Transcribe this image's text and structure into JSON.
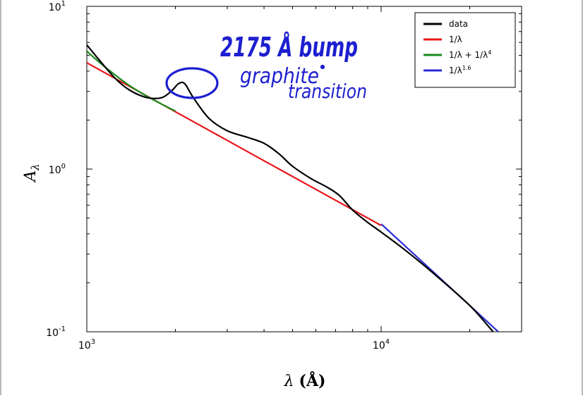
{
  "chart_data": {
    "type": "line",
    "xscale": "log",
    "yscale": "log",
    "xlim": [
      1000,
      30000
    ],
    "ylim": [
      0.1,
      10
    ],
    "xlabel_main": "λ",
    "xlabel_unit": "(Å)",
    "ylabel_main": "A",
    "ylabel_sub": "λ",
    "xticks": [
      {
        "base": "10",
        "exp": "3"
      },
      {
        "base": "10",
        "exp": "4"
      }
    ],
    "yticks": [
      {
        "base": "10",
        "exp": "-1"
      },
      {
        "base": "10",
        "exp": "0"
      },
      {
        "base": "10",
        "exp": "1"
      }
    ],
    "legend_position": "top-right",
    "series": [
      {
        "name": "data",
        "color": "#000000",
        "x": [
          1000,
          1100,
          1250,
          1400,
          1600,
          1800,
          1950,
          2050,
          2150,
          2300,
          2600,
          3000,
          3500,
          4000,
          4500,
          5000,
          5800,
          6500,
          7200,
          8000,
          9000,
          10000,
          12000,
          15000,
          20000,
          24000
        ],
        "y": [
          5.8,
          4.7,
          3.6,
          3.05,
          2.75,
          2.75,
          3.05,
          3.35,
          3.35,
          2.75,
          2.05,
          1.72,
          1.57,
          1.44,
          1.24,
          1.04,
          0.87,
          0.78,
          0.69,
          0.56,
          0.47,
          0.41,
          0.32,
          0.23,
          0.145,
          0.1
        ]
      },
      {
        "name": "1/λ",
        "color": "#e8161b",
        "x": [
          1000,
          10000
        ],
        "y": [
          4.5,
          0.45
        ]
      },
      {
        "name": "1/λ + 1/λ",
        "name_sup": "4",
        "color": "#1a8a1a",
        "x": [
          1000,
          1100,
          1200,
          1350,
          1500,
          1650,
          1800,
          2000
        ],
        "y": [
          5.3,
          4.55,
          4.0,
          3.4,
          3.0,
          2.72,
          2.5,
          2.27
        ]
      },
      {
        "name": "1/λ",
        "name_sup": "1.6",
        "color": "#2b2bd6",
        "x": [
          10000,
          25000
        ],
        "y": [
          0.46,
          0.1
        ]
      }
    ]
  },
  "annotations": {
    "bump_title": "2175 Å bump",
    "graphite_label": "graphite",
    "transition_label": "transition"
  }
}
